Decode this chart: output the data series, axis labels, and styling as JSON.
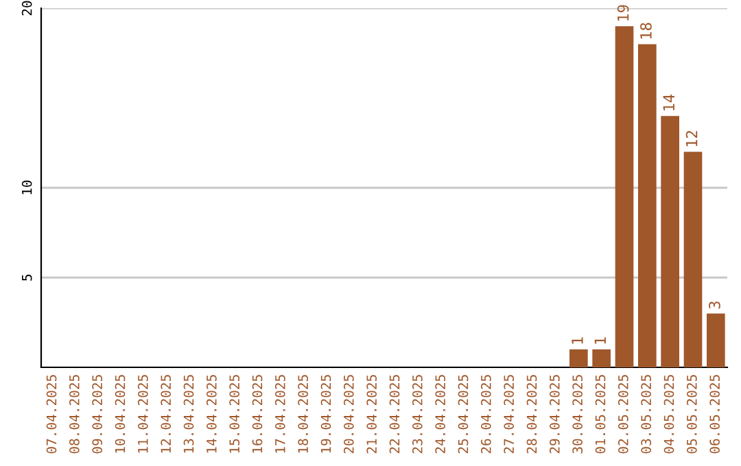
{
  "chart_data": {
    "type": "bar",
    "categories": [
      "07.04.2025",
      "08.04.2025",
      "09.04.2025",
      "10.04.2025",
      "11.04.2025",
      "12.04.2025",
      "13.04.2025",
      "14.04.2025",
      "15.04.2025",
      "16.04.2025",
      "17.04.2025",
      "18.04.2025",
      "19.04.2025",
      "20.04.2025",
      "21.04.2025",
      "22.04.2025",
      "23.04.2025",
      "24.04.2025",
      "25.04.2025",
      "26.04.2025",
      "27.04.2025",
      "28.04.2025",
      "29.04.2025",
      "30.04.2025",
      "01.05.2025",
      "02.05.2025",
      "03.05.2025",
      "04.05.2025",
      "05.05.2025",
      "06.05.2025"
    ],
    "values": [
      0,
      0,
      0,
      0,
      0,
      0,
      0,
      0,
      0,
      0,
      0,
      0,
      0,
      0,
      0,
      0,
      0,
      0,
      0,
      0,
      0,
      0,
      0,
      1,
      1,
      19,
      18,
      14,
      12,
      3
    ],
    "value_labels": [
      null,
      null,
      null,
      null,
      null,
      null,
      null,
      null,
      null,
      null,
      null,
      null,
      null,
      null,
      null,
      null,
      null,
      null,
      null,
      null,
      null,
      null,
      null,
      "1",
      "1",
      "19",
      "18",
      "14",
      "12",
      "3"
    ],
    "color": "#a0572a",
    "ylim": [
      0,
      20
    ],
    "yticks": [
      5,
      10,
      20
    ],
    "grid": "y",
    "legend": false
  }
}
